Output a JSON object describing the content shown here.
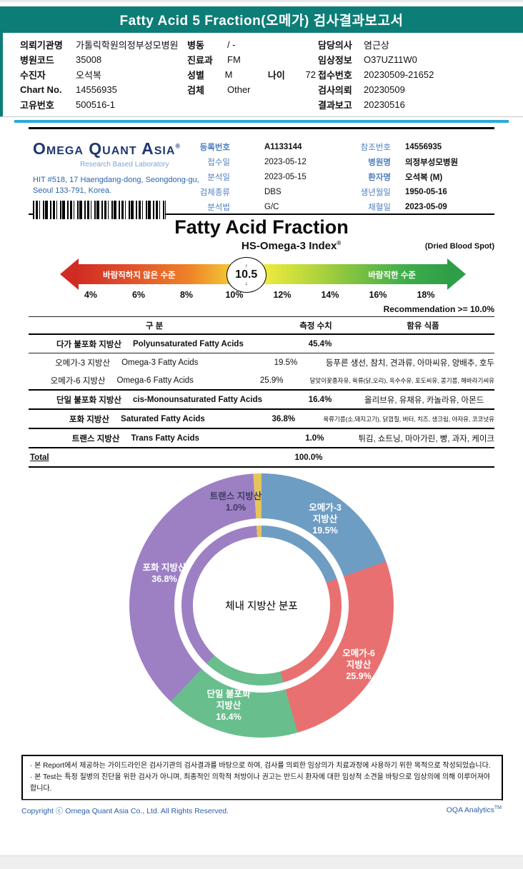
{
  "header": {
    "title": "Fatty Acid 5 Fraction(오메가) 검사결과보고서"
  },
  "patient_info": {
    "col1": [
      {
        "label": "의뢰기관명",
        "value": "가톨릭학원의정부성모병원"
      },
      {
        "label": "병원코드",
        "value": "35008"
      },
      {
        "label": "수진자",
        "value": "오석복"
      },
      {
        "label": "Chart No.",
        "value": "14556935"
      },
      {
        "label": "고유번호",
        "value": "500516-1"
      }
    ],
    "col2": [
      {
        "label": "병동",
        "value": "/ -"
      },
      {
        "label": "진료과",
        "value": "FM"
      },
      {
        "label": "성별",
        "value": "M",
        "label2": "나이",
        "value2": "72"
      },
      {
        "label": "검체",
        "value": "Other"
      }
    ],
    "col3": [
      {
        "label": "담당의사",
        "value": "염근상"
      },
      {
        "label": "임상정보",
        "value": "O37UZ11W0"
      },
      {
        "label": "접수번호",
        "value": "20230509-21652"
      },
      {
        "label": "검사의뢰",
        "value": "20230509"
      },
      {
        "label": "결과보고",
        "value": "20230516"
      }
    ]
  },
  "lab": {
    "logo_title": "Omega Quant Asia",
    "logo_reg": "®",
    "logo_subtitle": "Research Based Laboratory",
    "address_line1": "HIT #518, 17 Haengdang-dong, Seongdong-gu,",
    "address_line2": "Seoul 133-791, Korea.",
    "info_left": [
      {
        "label": "등록번호",
        "value": "A1133144"
      },
      {
        "label": "접수일",
        "value": "2023-05-12"
      },
      {
        "label": "분석일",
        "value": "2023-05-15"
      },
      {
        "label": "검체종류",
        "value": "DBS"
      },
      {
        "label": "분석법",
        "value": "G/C"
      }
    ],
    "info_right": [
      {
        "label": "참조번호",
        "value": "14556935"
      },
      {
        "label": "병원명",
        "value": "의정부성모병원"
      },
      {
        "label": "환자명",
        "value": "오석복 (M)"
      },
      {
        "label": "생년월일",
        "value": "1950-05-16"
      },
      {
        "label": "채혈일",
        "value": "2023-05-09"
      }
    ]
  },
  "section": {
    "title": "Fatty Acid Fraction",
    "index_label": "HS-Omega-3 Index",
    "index_reg": "®",
    "sample_type": "(Dried Blood Spot)",
    "recommendation": "Recommendation  >= 10.0%"
  },
  "gauge": {
    "value": 10.5,
    "min": 4,
    "max": 18,
    "ticks": [
      "4%",
      "6%",
      "8%",
      "10%",
      "12%",
      "14%",
      "16%",
      "18%"
    ],
    "left_label": "바람직하지 않은 수준",
    "right_label": "바람직한 수준",
    "up_arrow": "↑",
    "down_arrow": "↓"
  },
  "table": {
    "headers": {
      "gubun": "구 분",
      "value": "측정 수치",
      "foods": "함유 식품"
    },
    "rows": [
      {
        "kr": "다가 불포화 지방산",
        "en": "Polyunsaturated Fatty Acids",
        "value": "45.4%",
        "foods": ""
      },
      {
        "kr": "오메가-3 지방산",
        "en": "Omega-3 Fatty Acids",
        "value": "19.5%",
        "foods": "등푸른 생선, 참치, 견과류, 아마씨유, 양배추, 호두"
      },
      {
        "kr": "오메가-6 지방산",
        "en": "Omega-6 Fatty Acids",
        "value": "25.9%",
        "foods": "달맞이꽃종자유, 육류(닭,오리), 옥수수유, 포도씨유, 콩기름, 해바라기씨유"
      },
      {
        "kr": "단일 불포화 지방산",
        "en": "cis-Monounsaturated Fatty Acids",
        "value": "16.4%",
        "foods": "올리브유, 유채유, 카놀라유, 아몬드"
      },
      {
        "kr": "포화 지방산",
        "en": "Saturated Fatty Acids",
        "value": "36.8%",
        "foods": "육류기름(소,돼지고기), 닭껍질, 버터, 치즈, 생크림, 야자유, 코코넛유"
      },
      {
        "kr": "트랜스 지방산",
        "en": "Trans Fatty Acids",
        "value": "1.0%",
        "foods": "튀김, 쇼트닝, 마아가린, 빵, 과자, 케이크"
      }
    ],
    "total_label": "Total",
    "total_value": "100.0%"
  },
  "chart_data": [
    {
      "type": "pie",
      "title": "체내 지방산 분포",
      "categories": [
        "오메가-3 지방산",
        "오메가-6 지방산",
        "단일 불포화 지방산",
        "포화 지방산",
        "트랜스 지방산"
      ],
      "values": [
        19.5,
        25.9,
        16.4,
        36.8,
        1.0
      ],
      "colors": [
        "#6e9dc4",
        "#e97070",
        "#69be8d",
        "#9d80c4",
        "#e5c45c"
      ],
      "donut": true,
      "start_angle_deg": 0,
      "direction": "clockwise",
      "labels": [
        {
          "l1": "오메가-3",
          "l2": "지방산",
          "l3": "19.5%"
        },
        {
          "l1": "오메가-6",
          "l2": "지방산",
          "l3": "25.9%"
        },
        {
          "l1": "단일 불포화",
          "l2": "지방산",
          "l3": "16.4%"
        },
        {
          "l1": "포화 지방산",
          "l2": "36.8%"
        },
        {
          "l1": "트랜스 지방산",
          "l2": "1.0%"
        }
      ]
    }
  ],
  "footer": {
    "disclaimer_line1": "· 본 Report에서 제공하는 가이드라인은 검사기관의 검사결과를 바탕으로 하여, 검사를 의뢰한 임상의가 치료과정에 사용하기 위한 목적으로 작성되었습니다.",
    "disclaimer_line2": "· 본 Test는 특정 질병의 진단을 위한 검사가 아니며, 최종적인 의학적 처방이나 권고는 반드시 환자에 대한 임상적 소견을 바탕으로 임상의에 의해 이루어져야 합니다.",
    "copyright": "Copyright ⓒ Omega Quant Asia Co., Ltd.  All Rights Reserved.",
    "analytics": "OQA Analytics",
    "analytics_tm": "TM"
  }
}
